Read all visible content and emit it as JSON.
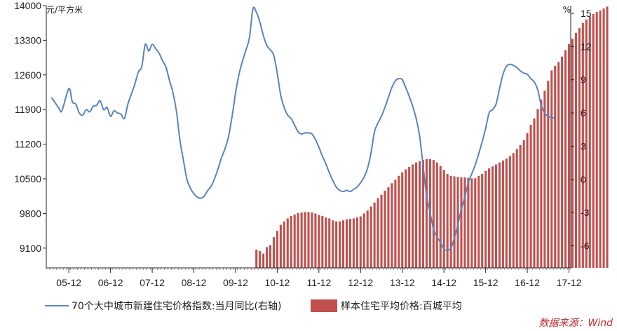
{
  "chart_data": {
    "type": "bar+line",
    "left_axis": {
      "unit": "元/平方米",
      "ticks": [
        9100,
        9800,
        10500,
        11200,
        11900,
        12600,
        13300,
        14000
      ],
      "range": [
        8700,
        14000
      ]
    },
    "right_axis": {
      "unit": "%",
      "ticks": [
        -6,
        -3,
        0,
        3,
        6,
        9,
        12,
        15
      ],
      "range": [
        -8.0,
        15.7
      ]
    },
    "x_axis": {
      "tick_labels": [
        "05-12",
        "06-12",
        "07-12",
        "08-12",
        "09-12",
        "10-12",
        "11-12",
        "12-12",
        "13-12",
        "14-12",
        "15-12",
        "16-12",
        "17-12"
      ],
      "start": "2005-06",
      "end": "2017-12"
    },
    "series": [
      {
        "name": "70个大中城市新建住宅价格指数:当月同比(右轴)",
        "type": "line",
        "axis": "right",
        "color": "#5b83be",
        "points": [
          [
            "2005-07",
            7.4
          ],
          [
            "2005-09",
            6.5
          ],
          [
            "2005-10",
            6.2
          ],
          [
            "2005-12",
            8.2
          ],
          [
            "2006-01",
            7.0
          ],
          [
            "2006-02",
            6.8
          ],
          [
            "2006-03",
            6.0
          ],
          [
            "2006-04",
            5.8
          ],
          [
            "2006-05",
            6.3
          ],
          [
            "2006-06",
            6.1
          ],
          [
            "2006-07",
            6.6
          ],
          [
            "2006-08",
            6.7
          ],
          [
            "2006-09",
            7.1
          ],
          [
            "2006-10",
            6.3
          ],
          [
            "2006-11",
            6.5
          ],
          [
            "2006-12",
            5.7
          ],
          [
            "2007-01",
            6.2
          ],
          [
            "2007-02",
            6.0
          ],
          [
            "2007-03",
            5.9
          ],
          [
            "2007-04",
            5.5
          ],
          [
            "2007-05",
            6.8
          ],
          [
            "2007-06",
            7.7
          ],
          [
            "2007-07",
            8.6
          ],
          [
            "2007-08",
            9.7
          ],
          [
            "2007-09",
            10.2
          ],
          [
            "2007-10",
            12.2
          ],
          [
            "2007-11",
            11.6
          ],
          [
            "2007-12",
            12.2
          ],
          [
            "2008-01",
            11.8
          ],
          [
            "2008-02",
            11.4
          ],
          [
            "2008-03",
            10.7
          ],
          [
            "2008-04",
            10.1
          ],
          [
            "2008-05",
            8.9
          ],
          [
            "2008-06",
            7.8
          ],
          [
            "2008-07",
            6.1
          ],
          [
            "2008-08",
            3.5
          ],
          [
            "2008-09",
            1.7
          ],
          [
            "2008-10",
            0.0
          ],
          [
            "2008-11",
            -0.8
          ],
          [
            "2008-12",
            -1.3
          ],
          [
            "2009-01",
            -1.6
          ],
          [
            "2009-02",
            -1.7
          ],
          [
            "2009-03",
            -1.5
          ],
          [
            "2009-04",
            -1.0
          ],
          [
            "2009-05",
            -0.6
          ],
          [
            "2009-06",
            0.1
          ],
          [
            "2009-07",
            1.0
          ],
          [
            "2009-08",
            2.0
          ],
          [
            "2009-09",
            2.8
          ],
          [
            "2009-10",
            3.9
          ],
          [
            "2009-11",
            5.7
          ],
          [
            "2009-12",
            7.8
          ],
          [
            "2010-01",
            9.5
          ],
          [
            "2010-02",
            10.7
          ],
          [
            "2010-03",
            11.7
          ],
          [
            "2010-04",
            12.8
          ],
          [
            "2010-05",
            15.4
          ],
          [
            "2010-06",
            15.1
          ],
          [
            "2010-07",
            14.2
          ],
          [
            "2010-08",
            13.0
          ],
          [
            "2010-09",
            12.1
          ],
          [
            "2010-10",
            11.7
          ],
          [
            "2010-11",
            11.2
          ],
          [
            "2010-12",
            9.6
          ],
          [
            "2011-01",
            7.6
          ],
          [
            "2011-02",
            6.5
          ],
          [
            "2011-03",
            5.8
          ],
          [
            "2011-04",
            5.5
          ],
          [
            "2011-05",
            4.9
          ],
          [
            "2011-06",
            4.3
          ],
          [
            "2011-07",
            4.1
          ],
          [
            "2011-08",
            4.2
          ],
          [
            "2011-09",
            4.2
          ],
          [
            "2011-10",
            4.1
          ],
          [
            "2011-11",
            3.6
          ],
          [
            "2011-12",
            2.9
          ],
          [
            "2012-01",
            2.1
          ],
          [
            "2012-02",
            1.4
          ],
          [
            "2012-03",
            0.6
          ],
          [
            "2012-04",
            -0.1
          ],
          [
            "2012-05",
            -0.7
          ],
          [
            "2012-06",
            -1.0
          ],
          [
            "2012-07",
            -1.1
          ],
          [
            "2012-08",
            -1.0
          ],
          [
            "2012-09",
            -1.1
          ],
          [
            "2012-10",
            -0.9
          ],
          [
            "2012-11",
            -0.7
          ],
          [
            "2012-12",
            -0.3
          ],
          [
            "2013-01",
            0.2
          ],
          [
            "2013-02",
            1.0
          ],
          [
            "2013-03",
            2.4
          ],
          [
            "2013-04",
            4.3
          ],
          [
            "2013-05",
            5.1
          ],
          [
            "2013-06",
            5.7
          ],
          [
            "2013-07",
            6.5
          ],
          [
            "2013-08",
            7.4
          ],
          [
            "2013-09",
            8.3
          ],
          [
            "2013-10",
            8.9
          ],
          [
            "2013-11",
            9.1
          ],
          [
            "2013-12",
            9.0
          ],
          [
            "2014-01",
            8.3
          ],
          [
            "2014-02",
            7.5
          ],
          [
            "2014-03",
            6.6
          ],
          [
            "2014-04",
            5.5
          ],
          [
            "2014-05",
            3.9
          ],
          [
            "2014-06",
            1.2
          ],
          [
            "2014-07",
            -1.5
          ],
          [
            "2014-08",
            -3.0
          ],
          [
            "2014-09",
            -4.5
          ],
          [
            "2014-10",
            -5.2
          ],
          [
            "2014-11",
            -5.7
          ],
          [
            "2014-12",
            -6.3
          ],
          [
            "2015-01",
            -6.4
          ],
          [
            "2015-02",
            -6.2
          ],
          [
            "2015-03",
            -5.3
          ],
          [
            "2015-04",
            -4.1
          ],
          [
            "2015-05",
            -2.7
          ],
          [
            "2015-06",
            -1.6
          ],
          [
            "2015-07",
            -0.3
          ],
          [
            "2015-08",
            0.5
          ],
          [
            "2015-09",
            1.3
          ],
          [
            "2015-10",
            2.3
          ],
          [
            "2015-11",
            3.4
          ],
          [
            "2015-12",
            4.6
          ],
          [
            "2016-01",
            6.0
          ],
          [
            "2016-02",
            6.3
          ],
          [
            "2016-03",
            6.8
          ],
          [
            "2016-04",
            8.2
          ],
          [
            "2016-05",
            9.5
          ],
          [
            "2016-06",
            10.2
          ],
          [
            "2016-07",
            10.4
          ],
          [
            "2016-08",
            10.3
          ],
          [
            "2016-09",
            10.1
          ],
          [
            "2016-10",
            9.8
          ],
          [
            "2016-11",
            9.6
          ],
          [
            "2016-12",
            9.5
          ],
          [
            "2017-01",
            9.1
          ],
          [
            "2017-02",
            8.8
          ],
          [
            "2017-03",
            8.1
          ],
          [
            "2017-04",
            6.7
          ],
          [
            "2017-05",
            6.0
          ],
          [
            "2017-06",
            5.7
          ],
          [
            "2017-07",
            5.6
          ],
          [
            "2017-08",
            5.5
          ]
        ]
      },
      {
        "name": "样本住宅平均价格:百城平均",
        "type": "bar",
        "axis": "left",
        "color": "#c0504d",
        "start": "2010-06",
        "values": [
          9070,
          9040,
          8990,
          9120,
          9160,
          9320,
          9450,
          9570,
          9640,
          9700,
          9750,
          9780,
          9810,
          9820,
          9830,
          9830,
          9820,
          9800,
          9770,
          9750,
          9720,
          9700,
          9660,
          9640,
          9640,
          9660,
          9680,
          9690,
          9700,
          9720,
          9740,
          9800,
          9860,
          9940,
          10020,
          10110,
          10180,
          10260,
          10330,
          10410,
          10480,
          10560,
          10630,
          10690,
          10740,
          10790,
          10830,
          10860,
          10880,
          10900,
          10900,
          10880,
          10830,
          10760,
          10680,
          10600,
          10560,
          10550,
          10540,
          10530,
          10530,
          10520,
          10510,
          10510,
          10560,
          10600,
          10660,
          10710,
          10750,
          10790,
          10830,
          10870,
          10910,
          10960,
          11020,
          11100,
          11180,
          11280,
          11420,
          11590,
          11720,
          11910,
          12100,
          12280,
          12480,
          12690,
          12780,
          12860,
          12970,
          13100,
          13220,
          13330,
          13450,
          13550,
          13650,
          13720,
          13780,
          13830,
          13870,
          13900,
          13940,
          13980
        ]
      }
    ],
    "legend": [
      "70个大中城市新建住宅价格指数:当月同比(右轴)",
      "样本住宅平均价格:百城平均"
    ],
    "legend_position": "bottom",
    "grid": false
  },
  "source_note": "数据来源：Wind"
}
